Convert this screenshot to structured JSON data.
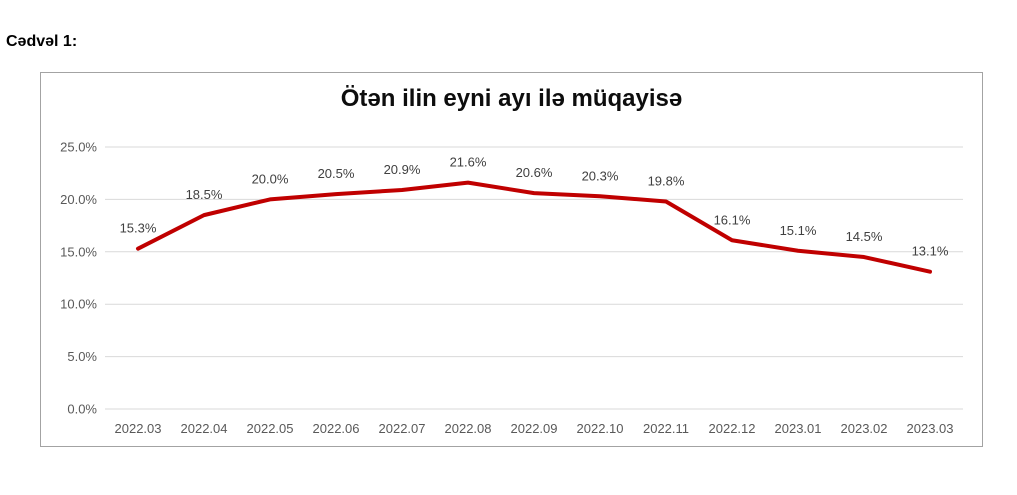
{
  "page": {
    "doc_label": "Cədvəl 1:"
  },
  "chart_data": {
    "type": "line",
    "title": "Ötən ilin eyni ayı ilə müqayisə",
    "categories": [
      "2022.03",
      "2022.04",
      "2022.05",
      "2022.06",
      "2022.07",
      "2022.08",
      "2022.09",
      "2022.10",
      "2022.11",
      "2022.12",
      "2023.01",
      "2023.02",
      "2023.03"
    ],
    "series": [
      {
        "name": "Ötən ilin eyni ayı ilə müqayisə",
        "values": [
          15.3,
          18.5,
          20.0,
          20.5,
          20.9,
          21.6,
          20.6,
          20.3,
          19.8,
          16.1,
          15.1,
          14.5,
          13.1
        ]
      }
    ],
    "data_labels": [
      "15.3%",
      "18.5%",
      "20.0%",
      "20.5%",
      "20.9%",
      "21.6%",
      "20.6%",
      "20.3%",
      "19.8%",
      "16.1%",
      "15.1%",
      "14.5%",
      "13.1%"
    ],
    "y_ticks": [
      "0.0%",
      "5.0%",
      "10.0%",
      "15.0%",
      "20.0%",
      "25.0%"
    ],
    "y_tick_values": [
      0,
      5,
      10,
      15,
      20,
      25
    ],
    "ylim": [
      0,
      25
    ],
    "grid": true,
    "legend_position": "none",
    "colors": {
      "line": "#c00000",
      "gridline": "#d9d9d9",
      "axis_text": "#595959",
      "data_label": "#404040",
      "title": "#0d0d0d",
      "frame_border": "#a3a3a3"
    }
  }
}
